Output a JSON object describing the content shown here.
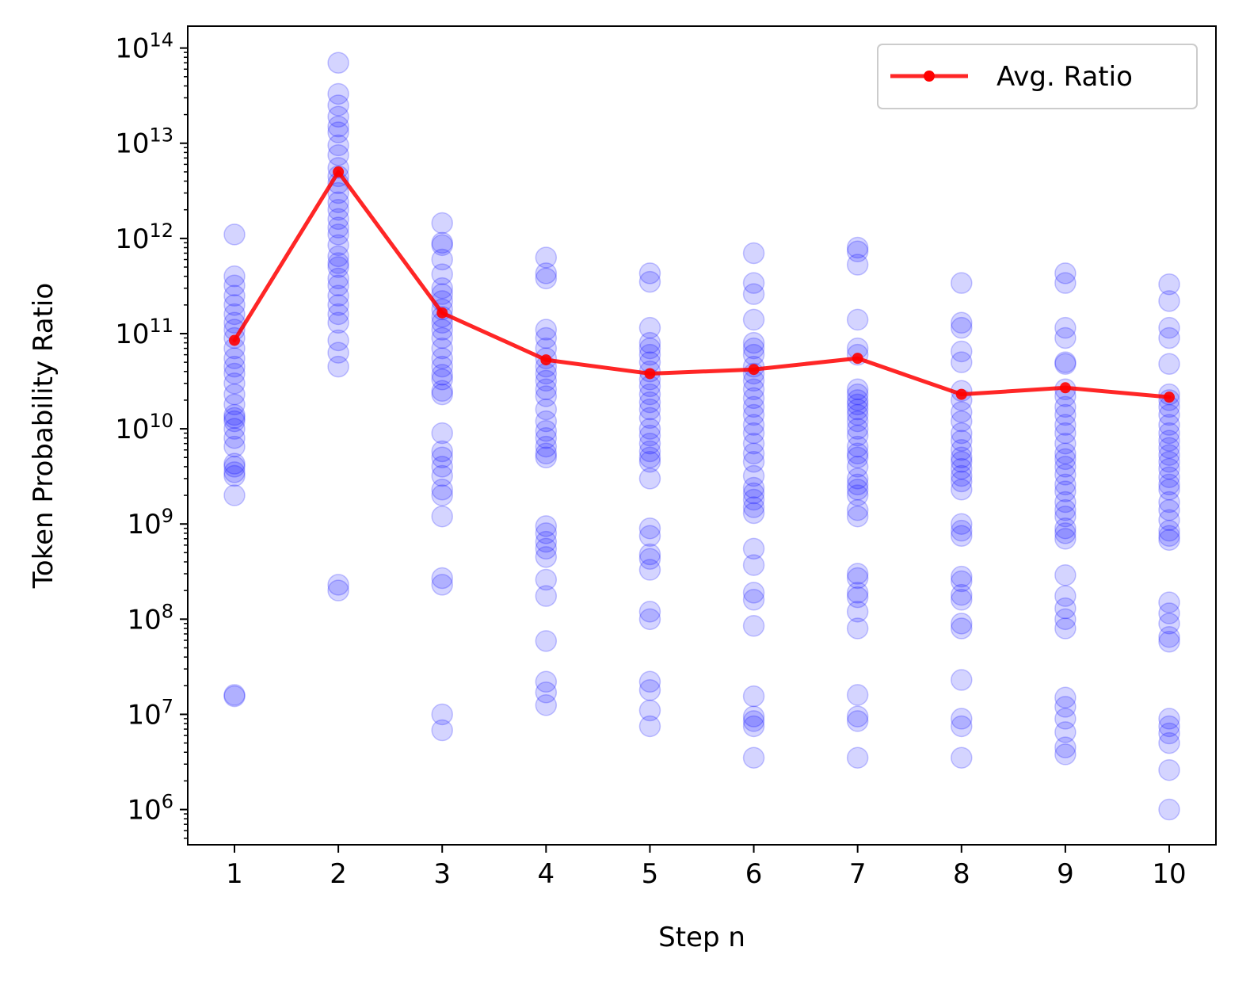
{
  "chart_data": {
    "type": "scatter",
    "title": "",
    "xlabel": "Step n",
    "ylabel": "Token Probability Ratio",
    "yscale": "log",
    "xlim": [
      0.55,
      10.45
    ],
    "ylim_exp": [
      5.63,
      14.23
    ],
    "x_ticks": [
      1,
      2,
      3,
      4,
      5,
      6,
      7,
      8,
      9,
      10
    ],
    "y_tick_exponents": [
      6,
      7,
      8,
      9,
      10,
      11,
      12,
      13,
      14
    ],
    "y_tick_base": "10",
    "grid": false,
    "legend_position": "top-right",
    "colors": {
      "scatter": "#0000ff",
      "avg_line": "#ff0000"
    },
    "series": [
      {
        "name": "Avg. Ratio",
        "type": "line",
        "x": [
          1,
          2,
          3,
          4,
          5,
          6,
          7,
          8,
          9,
          10
        ],
        "values": [
          85000000000.0,
          5000000000000.0,
          165000000000.0,
          53000000000.0,
          38000000000.0,
          42000000000.0,
          55000000000.0,
          23000000000.0,
          27000000000.0,
          21500000000.0
        ]
      }
    ],
    "scatter_points": [
      {
        "x": 1,
        "y": [
          1100000000000.0,
          400000000000.0,
          320000000000.0,
          250000000000.0,
          200000000000.0,
          160000000000.0,
          130000000000.0,
          110000000000.0,
          90000000000.0,
          70000000000.0,
          55000000000.0,
          45000000000.0,
          38000000000.0,
          30000000000.0,
          23000000000.0,
          18000000000.0,
          14000000000.0,
          13000000000.0,
          12000000000.0,
          10000000000.0,
          8000000000.0,
          6500000000.0,
          4300000000.0,
          4000000000.0,
          3500000000.0,
          3200000000.0,
          2000000000.0,
          16000000.0,
          15500000.0
        ]
      },
      {
        "x": 2,
        "y": [
          70000000000000.0,
          33000000000000.0,
          25000000000000.0,
          19000000000000.0,
          15000000000000.0,
          13000000000000.0,
          9500000000000.0,
          7500000000000.0,
          5500000000000.0,
          4500000000000.0,
          3800000000000.0,
          3000000000000.0,
          2400000000000.0,
          2000000000000.0,
          1600000000000.0,
          1300000000000.0,
          1100000000000.0,
          850000000000.0,
          650000000000.0,
          550000000000.0,
          500000000000.0,
          380000000000.0,
          320000000000.0,
          250000000000.0,
          200000000000.0,
          160000000000.0,
          130000000000.0,
          85000000000.0,
          63000000000.0,
          45000000000.0,
          230000000.0,
          200000000.0
        ]
      },
      {
        "x": 3,
        "y": [
          1450000000000.0,
          900000000000.0,
          850000000000.0,
          600000000000.0,
          420000000000.0,
          300000000000.0,
          260000000000.0,
          220000000000.0,
          180000000000.0,
          150000000000.0,
          130000000000.0,
          110000000000.0,
          90000000000.0,
          70000000000.0,
          55000000000.0,
          45000000000.0,
          37000000000.0,
          33000000000.0,
          25000000000.0,
          23000000000.0,
          9000000000.0,
          5800000000.0,
          5000000000.0,
          4000000000.0,
          3200000000.0,
          2300000000.0,
          2000000000.0,
          1200000000.0,
          270000000.0,
          230000000.0,
          10000000.0,
          6800000.0
        ]
      },
      {
        "x": 4,
        "y": [
          630000000000.0,
          430000000000.0,
          380000000000.0,
          110000000000.0,
          90000000000.0,
          70000000000.0,
          55000000000.0,
          45000000000.0,
          38000000000.0,
          32000000000.0,
          26000000000.0,
          22000000000.0,
          16000000000.0,
          12000000000.0,
          9500000000.0,
          8000000000.0,
          6500000000.0,
          5500000000.0,
          5000000000.0,
          950000000.0,
          800000000.0,
          650000000.0,
          550000000.0,
          450000000.0,
          260000000.0,
          175000000.0,
          59000000.0,
          22000000.0,
          17000000.0,
          12500000.0
        ]
      },
      {
        "x": 5,
        "y": [
          430000000000.0,
          350000000000.0,
          115000000000.0,
          80000000000.0,
          70000000000.0,
          60000000000.0,
          50000000000.0,
          40000000000.0,
          33000000000.0,
          28000000000.0,
          23000000000.0,
          19000000000.0,
          16000000000.0,
          13000000000.0,
          10000000000.0,
          8500000000.0,
          7000000000.0,
          5800000000.0,
          5000000000.0,
          4500000000.0,
          3000000000.0,
          900000000.0,
          750000000.0,
          480000000.0,
          430000000.0,
          330000000.0,
          120000000.0,
          100000000.0,
          22000000.0,
          18000000.0,
          11000000.0,
          7500000.0
        ]
      },
      {
        "x": 6,
        "y": [
          700000000000.0,
          340000000000.0,
          260000000000.0,
          140000000000.0,
          80000000000.0,
          70000000000.0,
          60000000000.0,
          45000000000.0,
          38000000000.0,
          32000000000.0,
          26000000000.0,
          21000000000.0,
          17000000000.0,
          14000000000.0,
          11000000000.0,
          9000000000.0,
          7000000000.0,
          5500000000.0,
          4500000000.0,
          3200000000.0,
          2400000000.0,
          2100000000.0,
          1800000000.0,
          1500000000.0,
          1300000000.0,
          550000000.0,
          370000000.0,
          190000000.0,
          160000000.0,
          85000000.0,
          15500000.0,
          9500000.0,
          8500000.0,
          7500000.0,
          3500000.0
        ]
      },
      {
        "x": 7,
        "y": [
          800000000000.0,
          730000000000.0,
          530000000000.0,
          140000000000.0,
          70000000000.0,
          60000000000.0,
          26000000000.0,
          23000000000.0,
          20000000000.0,
          18000000000.0,
          16000000000.0,
          14000000000.0,
          12000000000.0,
          10000000000.0,
          8500000000.0,
          6500000000.0,
          5500000000.0,
          5000000000.0,
          4000000000.0,
          3000000000.0,
          2600000000.0,
          2300000000.0,
          2000000000.0,
          1400000000.0,
          1200000000.0,
          300000000.0,
          270000000.0,
          190000000.0,
          170000000.0,
          120000000.0,
          80000000.0,
          16000000.0,
          9500000.0,
          8500000.0,
          3500000.0
        ]
      },
      {
        "x": 8,
        "y": [
          340000000000.0,
          130000000000.0,
          115000000000.0,
          65000000000.0,
          50000000000.0,
          25000000000.0,
          20000000000.0,
          15000000000.0,
          12000000000.0,
          9000000000.0,
          7500000000.0,
          6000000000.0,
          5000000000.0,
          4500000000.0,
          3800000000.0,
          3200000000.0,
          2800000000.0,
          2300000000.0,
          1000000000.0,
          850000000.0,
          750000000.0,
          280000000.0,
          250000000.0,
          180000000.0,
          160000000.0,
          90000000.0,
          80000000.0,
          23000000.0,
          9000000.0,
          7500000.0,
          3500000.0
        ]
      },
      {
        "x": 9,
        "y": [
          430000000000.0,
          340000000000.0,
          115000000000.0,
          90000000000.0,
          50000000000.0,
          48000000000.0,
          26000000000.0,
          22000000000.0,
          17000000000.0,
          14000000000.0,
          11000000000.0,
          9000000000.0,
          7000000000.0,
          5500000000.0,
          4800000000.0,
          4000000000.0,
          3300000000.0,
          2600000000.0,
          2200000000.0,
          1700000000.0,
          1400000000.0,
          1200000000.0,
          900000000.0,
          800000000.0,
          700000000.0,
          290000000.0,
          175000000.0,
          130000000.0,
          100000000.0,
          80000000.0,
          15000000.0,
          12000000.0,
          9000000.0,
          6500000.0,
          4500000.0,
          3800000.0
        ]
      },
      {
        "x": 10,
        "y": [
          330000000000.0,
          220000000000.0,
          115000000000.0,
          90000000000.0,
          48000000000.0,
          23000000000.0,
          20000000000.0,
          17000000000.0,
          14000000000.0,
          11000000000.0,
          9000000000.0,
          7500000000.0,
          6300000000.0,
          5300000000.0,
          4500000000.0,
          3800000000.0,
          3100000000.0,
          2600000000.0,
          2300000000.0,
          1700000000.0,
          1400000000.0,
          1100000000.0,
          850000000.0,
          750000000.0,
          680000000.0,
          150000000.0,
          115000000.0,
          90000000.0,
          65000000.0,
          58000000.0,
          9000000.0,
          7500000.0,
          6300000.0,
          5000000.0,
          2600000.0,
          1000000.0
        ]
      }
    ]
  }
}
